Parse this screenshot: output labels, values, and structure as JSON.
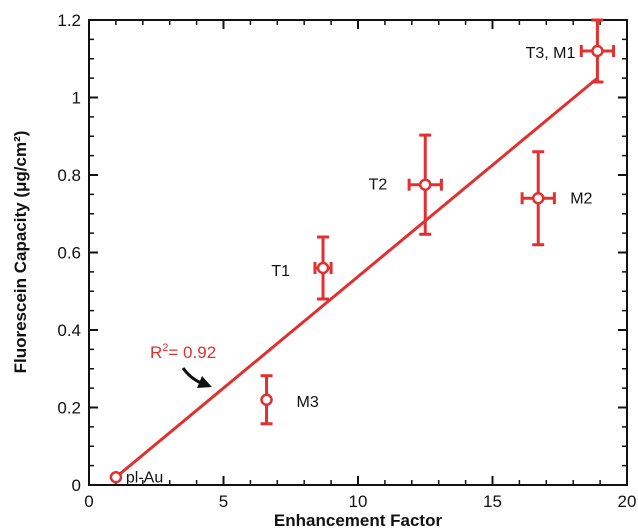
{
  "chart_data": {
    "type": "scatter",
    "title": "",
    "xlabel": "Enhancement Factor",
    "ylabel": "Fluorescein Capacity (μg/cm²)",
    "xlim": [
      0,
      20
    ],
    "ylim": [
      0,
      1.2
    ],
    "x_ticks": [
      0,
      5,
      10,
      15,
      20
    ],
    "y_ticks": [
      0,
      0.2,
      0.4,
      0.6,
      0.8,
      1,
      1.2
    ],
    "x_tick_labels": [
      "0",
      "5",
      "10",
      "15",
      "20"
    ],
    "y_tick_labels": [
      "0",
      "0.2",
      "0.4",
      "0.6",
      "0.8",
      "1",
      "1.2"
    ],
    "grid": false,
    "colors": {
      "series": "#e03030",
      "arrow": "#111111"
    },
    "points": [
      {
        "label": "pl-Au",
        "x": 1.0,
        "y": 0.02,
        "xerr": 0,
        "yerr": 0
      },
      {
        "label": "M3",
        "x": 6.6,
        "y": 0.22,
        "xerr": 0,
        "yerr": 0.062
      },
      {
        "label": "T1",
        "x": 8.7,
        "y": 0.56,
        "xerr": 0.3,
        "yerr": 0.08
      },
      {
        "label": "T2",
        "x": 12.5,
        "y": 0.775,
        "xerr": 0.6,
        "yerr": 0.128
      },
      {
        "label": "M2",
        "x": 16.7,
        "y": 0.74,
        "xerr": 0.6,
        "yerr": 0.12
      },
      {
        "label": "T3, M1",
        "x": 18.9,
        "y": 1.12,
        "xerr": 0.6,
        "yerr": 0.08
      }
    ],
    "fit_line": {
      "x": [
        1.0,
        18.9
      ],
      "y": [
        0.02,
        1.05
      ]
    },
    "annotation": {
      "text_main": "R",
      "text_sup": "2",
      "text_rest": "= 0.92"
    }
  }
}
